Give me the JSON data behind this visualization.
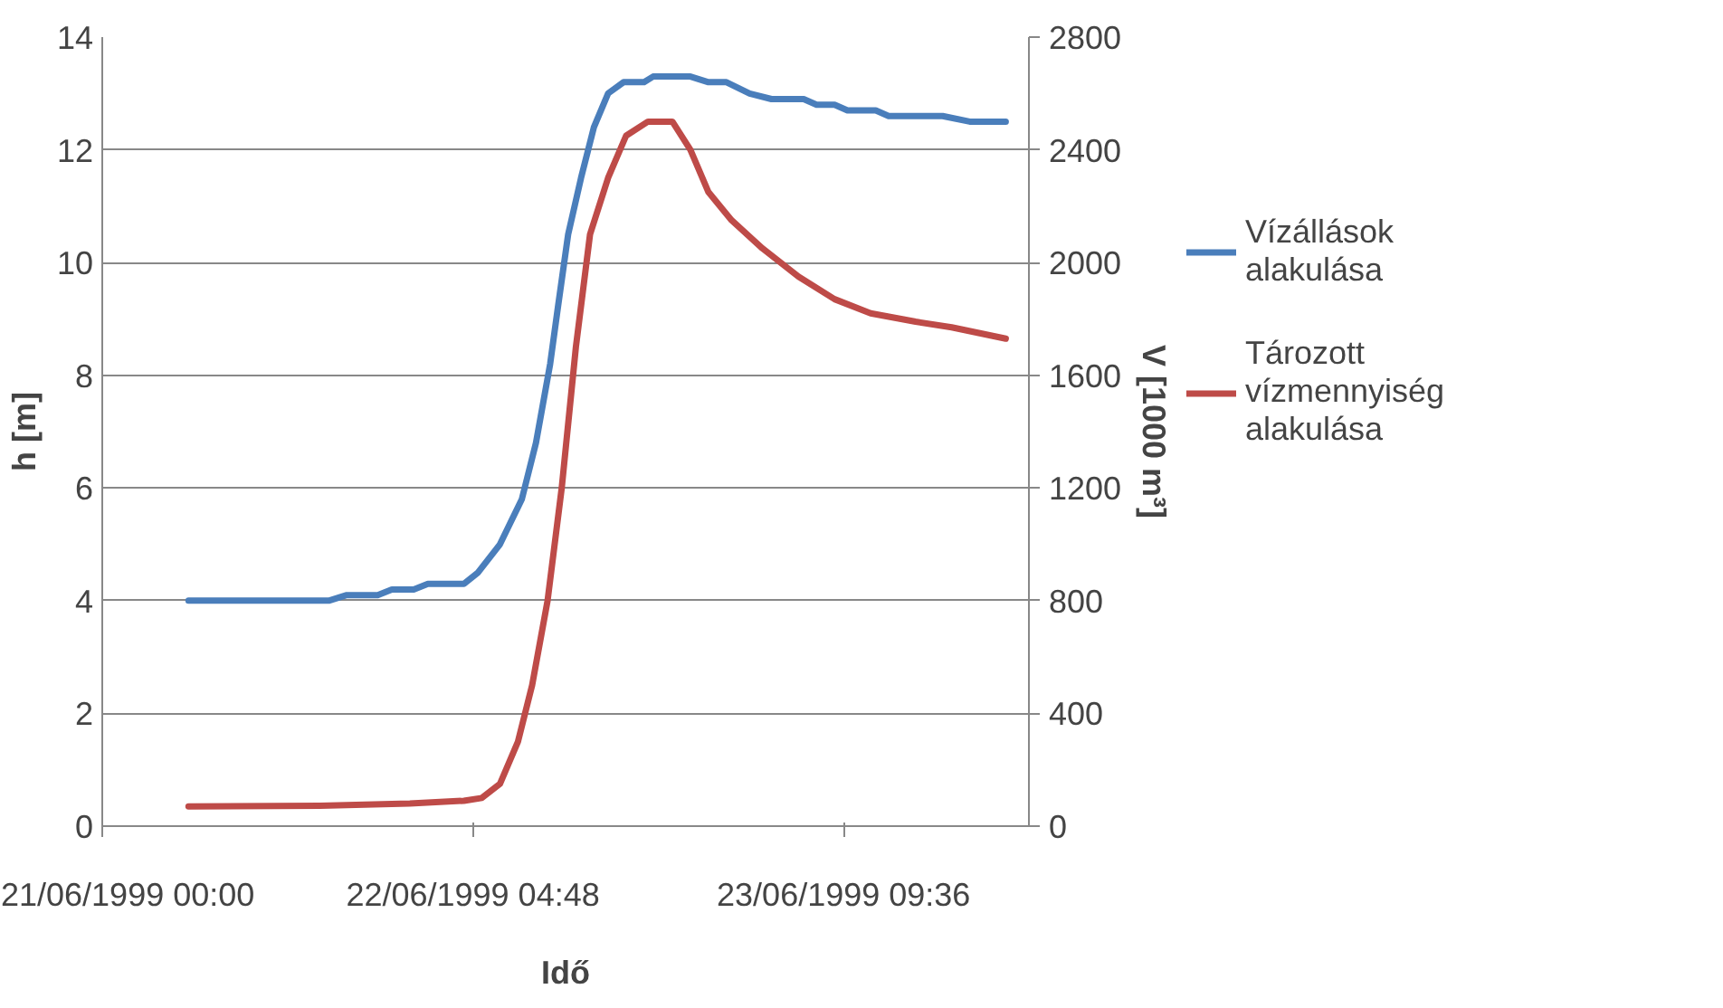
{
  "chart_data": {
    "type": "line",
    "xlabel": "Idő",
    "ylabel": "h [m]",
    "y2label": "V [1000 m³]",
    "xlim": [
      "1999-06-21T00:00",
      "1999-06-24T00:00"
    ],
    "xticks": [
      {
        "value": "1999-06-21T00:00",
        "label": "21/06/1999 00:00"
      },
      {
        "value": "1999-06-22T04:48",
        "label": "22/06/1999 04:48"
      },
      {
        "value": "1999-06-23T09:36",
        "label": "23/06/1999 09:36"
      }
    ],
    "ylim": [
      0,
      14
    ],
    "yticks": [
      0,
      2,
      4,
      6,
      8,
      10,
      12,
      14
    ],
    "y2lim": [
      0,
      2800
    ],
    "y2ticks": [
      0,
      400,
      800,
      1200,
      1600,
      2000,
      2400,
      2800
    ],
    "grid": "y",
    "legend": "right",
    "line_style": "solid",
    "marker": "none",
    "series": [
      {
        "name": "Vízállások alakulása",
        "color": "#4a7ebb",
        "x": [
          "1999-06-21T06:42",
          "1999-06-21T17:36",
          "1999-06-21T19:00",
          "1999-06-21T21:24",
          "1999-06-21T22:30",
          "1999-06-22T00:12",
          "1999-06-22T01:18",
          "1999-06-22T04:06",
          "1999-06-22T05:12",
          "1999-06-22T06:54",
          "1999-06-22T08:36",
          "1999-06-22T09:42",
          "1999-06-22T10:48",
          "1999-06-22T11:24",
          "1999-06-22T12:12",
          "1999-06-22T13:12",
          "1999-06-22T14:12",
          "1999-06-22T15:18",
          "1999-06-22T16:30",
          "1999-06-22T18:06",
          "1999-06-22T18:48",
          "1999-06-22T21:42",
          "1999-06-22T23:06",
          "1999-06-23T00:30",
          "1999-06-23T02:18",
          "1999-06-23T04:00",
          "1999-06-23T06:30",
          "1999-06-23T07:30",
          "1999-06-23T08:54",
          "1999-06-23T09:54",
          "1999-06-23T12:06",
          "1999-06-23T13:06",
          "1999-06-23T17:18",
          "1999-06-23T19:24",
          "1999-06-23T22:12"
        ],
        "values": [
          4.0,
          4.0,
          4.1,
          4.1,
          4.2,
          4.2,
          4.3,
          4.3,
          4.5,
          5.0,
          5.8,
          6.8,
          8.2,
          9.2,
          10.5,
          11.5,
          12.4,
          13.0,
          13.2,
          13.2,
          13.3,
          13.3,
          13.2,
          13.2,
          13.0,
          12.9,
          12.9,
          12.8,
          12.8,
          12.7,
          12.7,
          12.6,
          12.6,
          12.5,
          12.5
        ]
      },
      {
        "name": "Tározott vízmennyiség alakulása",
        "color": "#be4b48",
        "axis": "y2",
        "x": [
          "1999-06-21T06:42",
          "1999-06-21T16:54",
          "1999-06-21T23:54",
          "1999-06-22T04:06",
          "1999-06-22T05:30",
          "1999-06-22T06:54",
          "1999-06-22T08:18",
          "1999-06-22T09:24",
          "1999-06-22T10:36",
          "1999-06-22T11:42",
          "1999-06-22T12:48",
          "1999-06-22T13:54",
          "1999-06-22T15:18",
          "1999-06-22T16:42",
          "1999-06-22T18:24",
          "1999-06-22T20:18",
          "1999-06-22T21:42",
          "1999-06-22T23:06",
          "1999-06-23T00:54",
          "1999-06-23T03:18",
          "1999-06-23T06:06",
          "1999-06-23T08:54",
          "1999-06-23T11:42",
          "1999-06-23T15:12",
          "1999-06-23T18:00",
          "1999-06-23T20:06",
          "1999-06-23T22:12"
        ],
        "values": [
          70,
          72,
          80,
          90,
          100,
          150,
          300,
          500,
          800,
          1200,
          1700,
          2100,
          2300,
          2450,
          2500,
          2500,
          2400,
          2250,
          2150,
          2050,
          1950,
          1870,
          1820,
          1790,
          1770,
          1750,
          1730
        ]
      }
    ]
  }
}
